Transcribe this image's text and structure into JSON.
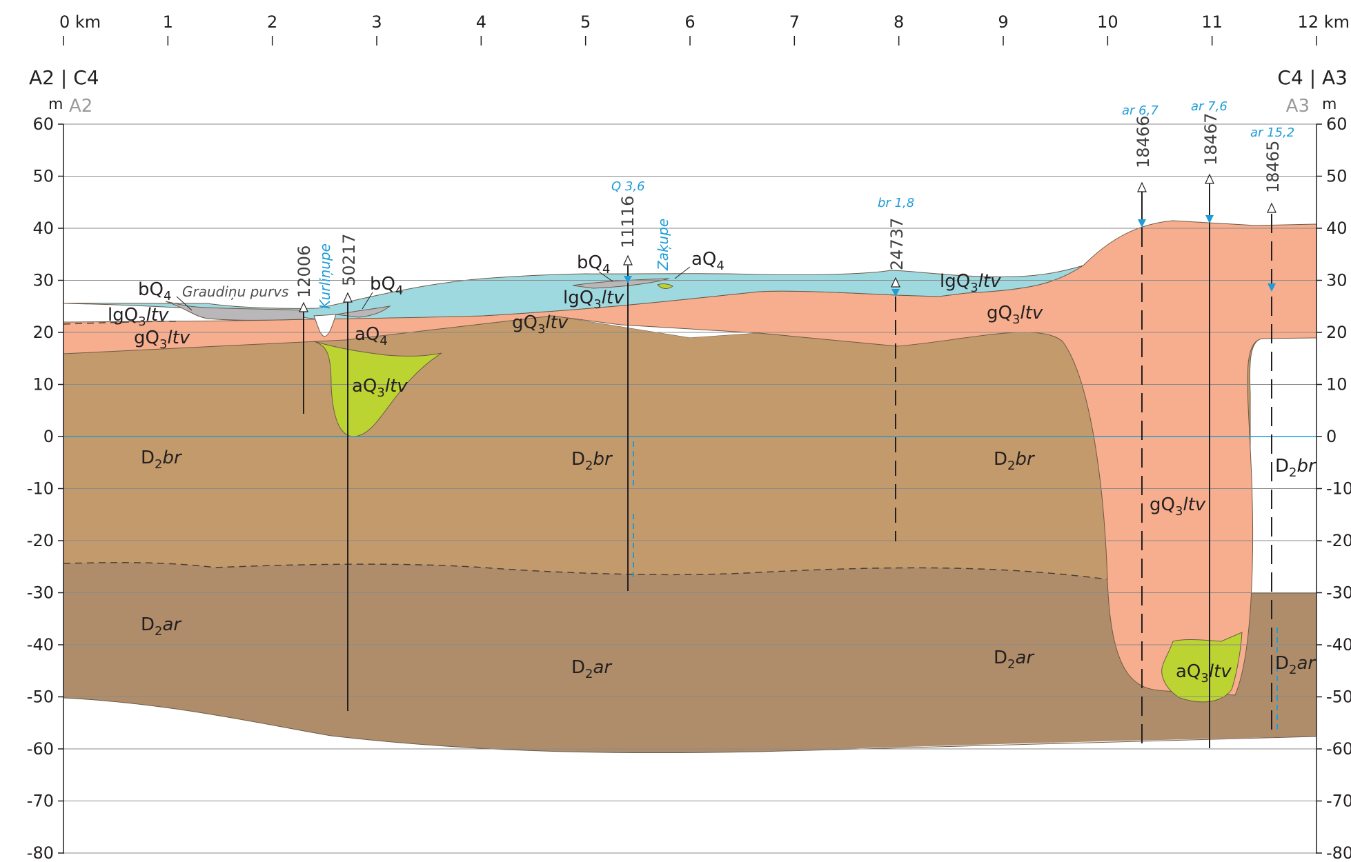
{
  "km_axis": {
    "ticks": [
      "0 km",
      "1",
      "2",
      "3",
      "4",
      "5",
      "6",
      "7",
      "8",
      "9",
      "10",
      "11",
      "12 km"
    ]
  },
  "elevation_axis": {
    "unit": "m",
    "ticks": [
      "60",
      "50",
      "40",
      "30",
      "20",
      "10",
      "0",
      "-10",
      "-20",
      "-30",
      "-40",
      "-50",
      "-60",
      "-70",
      "-80"
    ]
  },
  "header": {
    "left_title": "A2 | C4",
    "left_sub": "A2",
    "right_title": "C4 | A3",
    "right_sub": "A3"
  },
  "wells": {
    "w12006": "12006",
    "w50217": "50217",
    "w11116": "11116",
    "w24737": "24737",
    "w18466": "18466",
    "w18467": "18467",
    "w18465": "18465"
  },
  "well_annotations": {
    "q36": "Q 3,6",
    "br18": "br 1,8",
    "ar67": "ar 6,7",
    "ar76": "ar 7,6",
    "ar152": "ar 15,2"
  },
  "rivers": {
    "kurlinupe": "Kurliņupe",
    "zakupe": "Zaķupe"
  },
  "place_labels": {
    "graudinu": "Graudiņu purvs"
  },
  "formations": {
    "bQ4_a": {
      "base": "bQ",
      "sub": "4",
      "ital": ""
    },
    "bQ4_b": {
      "base": "bQ",
      "sub": "4",
      "ital": ""
    },
    "bQ4_c": {
      "base": "bQ",
      "sub": "4",
      "ital": ""
    },
    "aQ4_a": {
      "base": "aQ",
      "sub": "4",
      "ital": ""
    },
    "aQ4_b": {
      "base": "aQ",
      "sub": "4",
      "ital": ""
    },
    "lgQ3_a": {
      "base": "lgQ",
      "sub": "3",
      "ital": "ltv"
    },
    "lgQ3_b": {
      "base": "lgQ",
      "sub": "3",
      "ital": "ltv"
    },
    "lgQ3_c": {
      "base": "lgQ",
      "sub": "3",
      "ital": "ltv"
    },
    "gQ3_a": {
      "base": "gQ",
      "sub": "3",
      "ital": "ltv"
    },
    "gQ3_b": {
      "base": "gQ",
      "sub": "3",
      "ital": "ltv"
    },
    "gQ3_c": {
      "base": "gQ",
      "sub": "3",
      "ital": "ltv"
    },
    "gQ3_d": {
      "base": "gQ",
      "sub": "3",
      "ital": "ltv"
    },
    "aQ3_a": {
      "base": "aQ",
      "sub": "3",
      "ital": "ltv"
    },
    "aQ3_b": {
      "base": "aQ",
      "sub": "3",
      "ital": "ltv"
    },
    "D2br_a": {
      "base": "D",
      "sub": "2",
      "ital": "br"
    },
    "D2br_b": {
      "base": "D",
      "sub": "2",
      "ital": "br"
    },
    "D2br_c": {
      "base": "D",
      "sub": "2",
      "ital": "br"
    },
    "D2br_d": {
      "base": "D",
      "sub": "2",
      "ital": "br"
    },
    "D2ar_a": {
      "base": "D",
      "sub": "2",
      "ital": "ar"
    },
    "D2ar_b": {
      "base": "D",
      "sub": "2",
      "ital": "ar"
    },
    "D2ar_c": {
      "base": "D",
      "sub": "2",
      "ital": "ar"
    },
    "D2ar_d": {
      "base": "D",
      "sub": "2",
      "ital": "ar"
    }
  },
  "colors": {
    "peat_bQ4": "#b9b7ba",
    "glaciolacustrine_lgQ3": "#9fd9e0",
    "till_gQ3": "#f6ae8e",
    "alluvial_aQ3": "#bcd432",
    "burtnieki_D2br": "#c39a6b",
    "arukula_D2ar": "#b08d6a",
    "water_line": "#1e9cd7"
  }
}
